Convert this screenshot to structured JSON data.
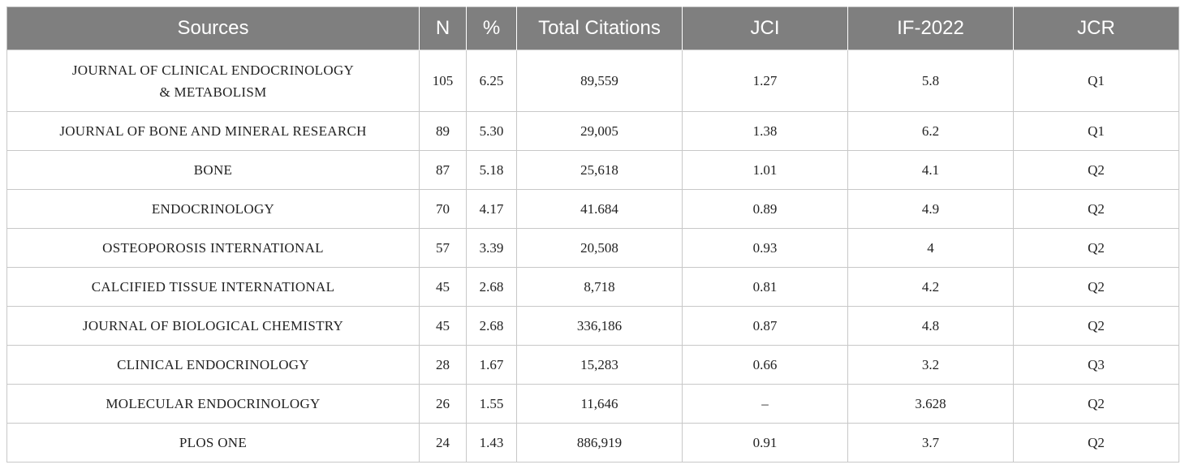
{
  "table": {
    "headers": [
      "Sources",
      "N",
      "%",
      "Total Citations",
      "JCI",
      "IF-2022",
      "JCR"
    ],
    "rows": [
      {
        "source_line1": "JOURNAL OF CLINICAL ENDOCRINOLOGY",
        "source_line2": "& METABOLISM",
        "n": "105",
        "pct": "6.25",
        "total_citations": "89,559",
        "jci": "1.27",
        "if_2022": "5.8",
        "jcr": "Q1"
      },
      {
        "source_line1": "JOURNAL OF BONE AND MINERAL RESEARCH",
        "source_line2": "",
        "n": "89",
        "pct": "5.30",
        "total_citations": "29,005",
        "jci": "1.38",
        "if_2022": "6.2",
        "jcr": "Q1"
      },
      {
        "source_line1": "BONE",
        "source_line2": "",
        "n": "87",
        "pct": "5.18",
        "total_citations": "25,618",
        "jci": "1.01",
        "if_2022": "4.1",
        "jcr": "Q2"
      },
      {
        "source_line1": "ENDOCRINOLOGY",
        "source_line2": "",
        "n": "70",
        "pct": "4.17",
        "total_citations": "41.684",
        "jci": "0.89",
        "if_2022": "4.9",
        "jcr": "Q2"
      },
      {
        "source_line1": "OSTEOPOROSIS INTERNATIONAL",
        "source_line2": "",
        "n": "57",
        "pct": "3.39",
        "total_citations": "20,508",
        "jci": "0.93",
        "if_2022": "4",
        "jcr": "Q2"
      },
      {
        "source_line1": "CALCIFIED TISSUE INTERNATIONAL",
        "source_line2": "",
        "n": "45",
        "pct": "2.68",
        "total_citations": "8,718",
        "jci": "0.81",
        "if_2022": "4.2",
        "jcr": "Q2"
      },
      {
        "source_line1": "JOURNAL OF BIOLOGICAL CHEMISTRY",
        "source_line2": "",
        "n": "45",
        "pct": "2.68",
        "total_citations": "336,186",
        "jci": "0.87",
        "if_2022": "4.8",
        "jcr": "Q2"
      },
      {
        "source_line1": "CLINICAL ENDOCRINOLOGY",
        "source_line2": "",
        "n": "28",
        "pct": "1.67",
        "total_citations": "15,283",
        "jci": "0.66",
        "if_2022": "3.2",
        "jcr": "Q3"
      },
      {
        "source_line1": "MOLECULAR ENDOCRINOLOGY",
        "source_line2": "",
        "n": "26",
        "pct": "1.55",
        "total_citations": "11,646",
        "jci": "–",
        "if_2022": "3.628",
        "jcr": "Q2"
      },
      {
        "source_line1": "PLOS ONE",
        "source_line2": "",
        "n": "24",
        "pct": "1.43",
        "total_citations": "886,919",
        "jci": "0.91",
        "if_2022": "3.7",
        "jcr": "Q2"
      }
    ]
  }
}
